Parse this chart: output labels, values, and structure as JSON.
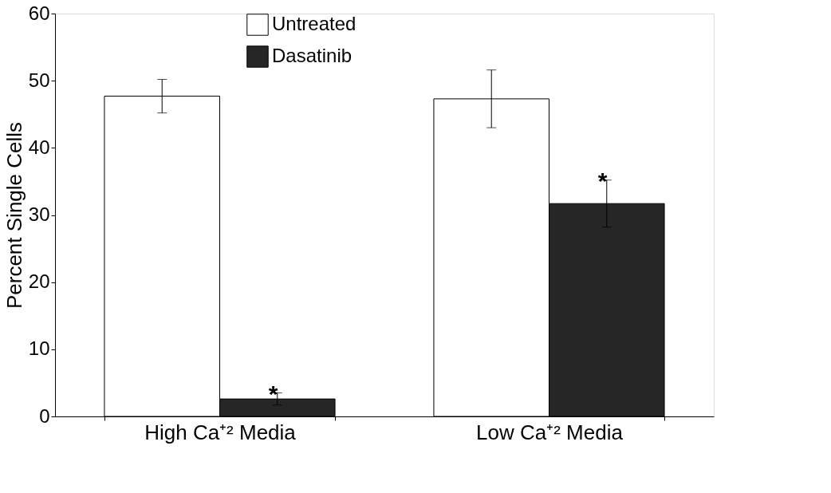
{
  "chart_data": {
    "type": "bar",
    "ylabel": "Percent Single Cells",
    "categories": [
      "High Ca⁺² Media",
      "Low Ca⁺² Media"
    ],
    "series": [
      {
        "name": "Untreated",
        "color": "#ffffff",
        "values": [
          47.7,
          47.3
        ],
        "errors": [
          2.5,
          4.3
        ]
      },
      {
        "name": "Dasatinib",
        "color": "#262626",
        "values": [
          2.6,
          31.7
        ],
        "errors": [
          0.9,
          3.5
        ]
      }
    ],
    "ylim": [
      0,
      60
    ],
    "yticks": [
      0,
      10,
      20,
      30,
      40,
      50,
      60
    ],
    "grid": false,
    "legend": "top",
    "annotations": [
      {
        "text": "*",
        "x": "High Ca⁺² Media",
        "y": 4.5
      },
      {
        "text": "*",
        "x": "Low Ca⁺² Media",
        "y": 36.2
      }
    ]
  }
}
